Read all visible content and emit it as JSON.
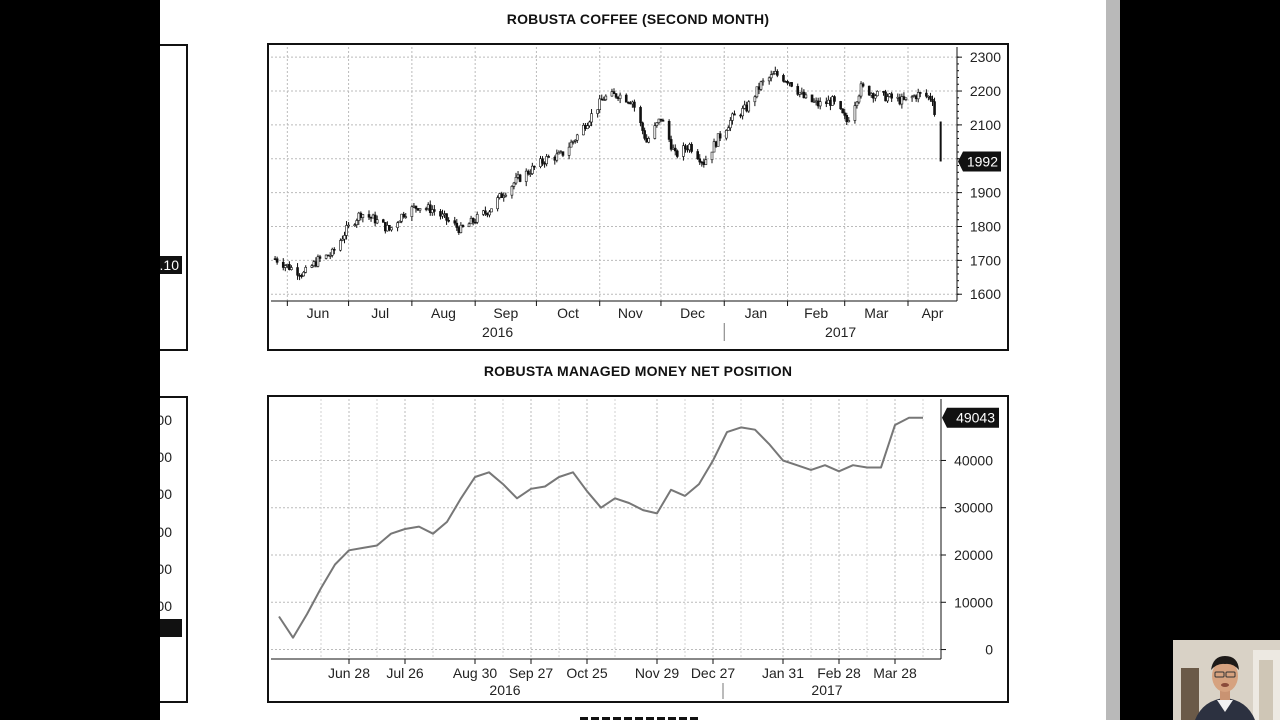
{
  "left_partial": {
    "label_top": ".10",
    "labels_bottom": [
      "00",
      "00",
      "00",
      "00",
      "00",
      "00"
    ],
    "label_bottom_highlight": "0"
  },
  "chart_data": [
    {
      "type": "candlestick",
      "title": "ROBUSTA COFFEE (SECOND MONTH)",
      "ylim": [
        1580,
        2330
      ],
      "yticks": [
        1600,
        1700,
        1800,
        1900,
        2000,
        2100,
        2200,
        2300
      ],
      "x_month_labels": [
        "Jun",
        "Jul",
        "Aug",
        "Sep",
        "Oct",
        "Nov",
        "Dec",
        "Jan",
        "Feb",
        "Mar",
        "Apr"
      ],
      "x_year_labels": [
        "2016",
        "2017"
      ],
      "last_value_label": "1992",
      "grid": true,
      "series": [
        {
          "x": [
            "2016-05-26",
            "2016-06-02",
            "2016-06-09",
            "2016-06-16",
            "2016-06-23",
            "2016-06-30",
            "2016-07-07",
            "2016-07-14",
            "2016-07-21",
            "2016-07-28",
            "2016-08-04",
            "2016-08-11",
            "2016-08-18",
            "2016-08-25",
            "2016-09-01",
            "2016-09-08",
            "2016-09-15",
            "2016-09-22",
            "2016-09-29",
            "2016-10-06",
            "2016-10-13",
            "2016-10-20",
            "2016-10-27",
            "2016-11-03",
            "2016-11-10",
            "2016-11-17",
            "2016-11-24",
            "2016-12-01",
            "2016-12-08",
            "2016-12-15",
            "2016-12-22",
            "2016-12-29",
            "2017-01-05",
            "2017-01-12",
            "2017-01-19",
            "2017-01-26",
            "2017-02-02",
            "2017-02-09",
            "2017-02-16",
            "2017-02-23",
            "2017-03-02",
            "2017-03-09",
            "2017-03-16",
            "2017-03-23",
            "2017-03-30",
            "2017-04-06",
            "2017-04-13",
            "2017-04-17"
          ],
          "close": [
            1705,
            1680,
            1660,
            1700,
            1720,
            1790,
            1840,
            1820,
            1790,
            1840,
            1860,
            1850,
            1820,
            1790,
            1820,
            1850,
            1900,
            1940,
            1970,
            2000,
            2010,
            2060,
            2120,
            2180,
            2190,
            2170,
            2050,
            2120,
            2010,
            2040,
            1990,
            2060,
            2120,
            2150,
            2220,
            2250,
            2230,
            2180,
            2160,
            2170,
            2110,
            2210,
            2190,
            2180,
            2170,
            2190,
            2180,
            1992
          ]
        }
      ]
    },
    {
      "type": "line",
      "title": "ROBUSTA MANAGED MONEY NET POSITION",
      "ylim": [
        -2000,
        53000
      ],
      "yticks": [
        0,
        10000,
        20000,
        30000,
        40000
      ],
      "x_tick_labels": [
        "Jun 28",
        "Jul 26",
        "Aug 30",
        "Sep 27",
        "Oct 25",
        "Nov 29",
        "Dec 27",
        "Jan 31",
        "Feb 28",
        "Mar 28"
      ],
      "x_year_labels": [
        "2016",
        "2017"
      ],
      "last_value_label": "49043",
      "grid": true,
      "series": [
        {
          "x": [
            "2016-05-24",
            "2016-05-31",
            "2016-06-07",
            "2016-06-14",
            "2016-06-21",
            "2016-06-28",
            "2016-07-05",
            "2016-07-12",
            "2016-07-19",
            "2016-07-26",
            "2016-08-02",
            "2016-08-09",
            "2016-08-16",
            "2016-08-23",
            "2016-08-30",
            "2016-09-06",
            "2016-09-13",
            "2016-09-20",
            "2016-09-27",
            "2016-10-04",
            "2016-10-11",
            "2016-10-18",
            "2016-10-25",
            "2016-11-01",
            "2016-11-08",
            "2016-11-15",
            "2016-11-22",
            "2016-11-29",
            "2016-12-06",
            "2016-12-13",
            "2016-12-20",
            "2016-12-27",
            "2017-01-03",
            "2017-01-10",
            "2017-01-17",
            "2017-01-24",
            "2017-01-31",
            "2017-02-07",
            "2017-02-14",
            "2017-02-21",
            "2017-02-28",
            "2017-03-07",
            "2017-03-14",
            "2017-03-21",
            "2017-03-28",
            "2017-04-04",
            "2017-04-11"
          ],
          "values": [
            7000,
            2500,
            7500,
            13000,
            18000,
            21000,
            21500,
            22000,
            24500,
            25500,
            26000,
            24500,
            27000,
            32000,
            36500,
            37500,
            35000,
            32000,
            34000,
            34500,
            36500,
            37500,
            33500,
            30000,
            32000,
            31000,
            29500,
            28800,
            33800,
            32500,
            35000,
            40000,
            46000,
            47000,
            46500,
            43500,
            40000,
            39000,
            38000,
            39000,
            37700,
            39000,
            38500,
            38500,
            47500,
            49043,
            49043
          ]
        }
      ]
    }
  ]
}
